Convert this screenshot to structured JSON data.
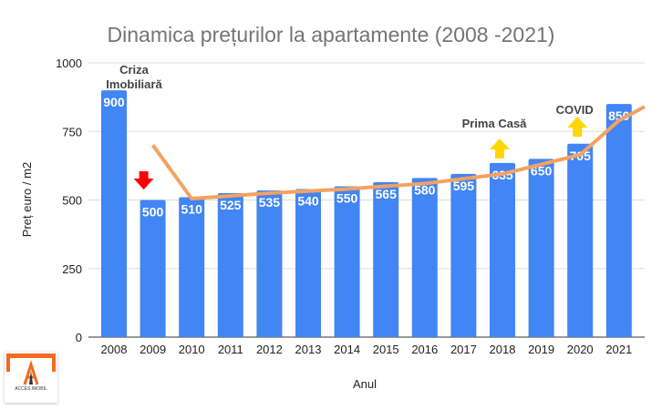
{
  "chart_data": {
    "type": "bar",
    "title": "Dinamica prețurilor la apartamente (2008 -2021)",
    "xlabel": "Anul",
    "ylabel": "Preț euro / m2",
    "ylim": [
      0,
      1000
    ],
    "yticks": [
      0,
      250,
      500,
      750,
      1000
    ],
    "grid": true,
    "categories": [
      "2008",
      "2009",
      "2010",
      "2011",
      "2012",
      "2013",
      "2014",
      "2015",
      "2016",
      "2017",
      "2018",
      "2019",
      "2020",
      "2021"
    ],
    "values": [
      900,
      500,
      510,
      525,
      535,
      540,
      550,
      565,
      580,
      595,
      635,
      650,
      705,
      850
    ],
    "bar_color": "#4285f4",
    "trendline": {
      "color": "#f4a261",
      "x": [
        "2009",
        "2010",
        "2012",
        "2014",
        "2016",
        "2018",
        "2020",
        "2021"
      ],
      "y": [
        700,
        505,
        525,
        540,
        560,
        595,
        665,
        790
      ]
    },
    "annotations": [
      {
        "text": "Criza Imobiliară",
        "x": "2008"
      },
      {
        "text": "Prima Casă",
        "x": "2018"
      },
      {
        "text": "COVID",
        "x": "2020"
      }
    ],
    "arrows": [
      {
        "x": "2009",
        "direction": "down",
        "color": "#ff0000"
      },
      {
        "x": "2018",
        "direction": "up",
        "color": "#ffd600"
      },
      {
        "x": "2020",
        "direction": "up",
        "color": "#ffd600"
      }
    ]
  },
  "logo": {
    "text": "ACCES IMOBIL"
  }
}
